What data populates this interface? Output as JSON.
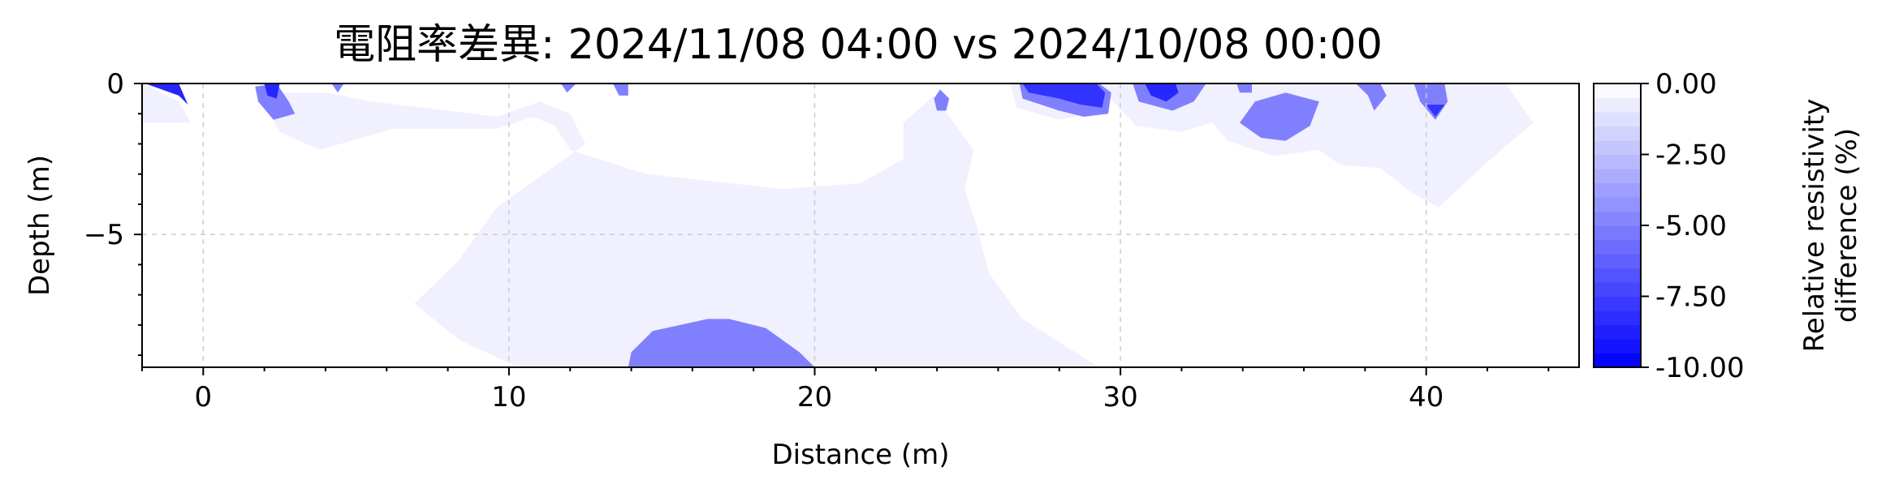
{
  "chart_data": {
    "type": "contour",
    "title": "電阻率差異: 2024/11/08 04:00 vs 2024/10/08 00:00",
    "xlabel": "Distance (m)",
    "ylabel": "Depth (m)",
    "xlim": [
      -2.0,
      45.0
    ],
    "ylim": [
      -9.4,
      0.0
    ],
    "x_ticks": [
      0,
      10,
      20,
      30,
      40
    ],
    "y_ticks": [
      0,
      -5
    ],
    "x_tick_labels": [
      "0",
      "10",
      "20",
      "30",
      "40"
    ],
    "y_tick_labels": [
      "0",
      "−5"
    ],
    "grid": true,
    "colorbar": {
      "label_lines": [
        "Relative resistivity",
        "difference (%)"
      ],
      "range": [
        -10.0,
        0.0
      ],
      "ticks": [
        0.0,
        -2.5,
        -5.0,
        -7.5,
        -10.0
      ],
      "tick_labels": [
        "0.00",
        "-2.50",
        "-5.00",
        "-7.50",
        "-10.00"
      ],
      "levels": 20,
      "color_min": "#0000ff",
      "color_max": "#ffffff"
    },
    "regions": [
      {
        "name": "broad-weak-region",
        "value": -0.6,
        "polygon": [
          [
            1.8,
            -0.3
          ],
          [
            2.5,
            -1.6
          ],
          [
            3.8,
            -2.2
          ],
          [
            6.2,
            -1.5
          ],
          [
            9.6,
            -1.5
          ],
          [
            10.8,
            -1.1
          ],
          [
            11.5,
            -1.4
          ],
          [
            12.0,
            -2.2
          ],
          [
            14.5,
            -3.0
          ],
          [
            19.0,
            -3.5
          ],
          [
            21.5,
            -3.3
          ],
          [
            22.9,
            -2.5
          ],
          [
            22.9,
            -1.3
          ],
          [
            23.9,
            -0.4
          ],
          [
            25.2,
            -2.2
          ],
          [
            24.9,
            -3.5
          ],
          [
            25.3,
            -4.7
          ],
          [
            25.7,
            -6.3
          ],
          [
            26.8,
            -7.8
          ],
          [
            29.3,
            -9.4
          ],
          [
            10.3,
            -9.4
          ],
          [
            8.4,
            -8.5
          ],
          [
            6.9,
            -7.3
          ],
          [
            8.4,
            -5.8
          ],
          [
            9.6,
            -4.1
          ],
          [
            11.0,
            -3.1
          ],
          [
            12.5,
            -2.0
          ],
          [
            12.0,
            -1.0
          ],
          [
            11.0,
            -0.6
          ],
          [
            9.6,
            -1.1
          ],
          [
            8.0,
            -0.9
          ],
          [
            5.5,
            -0.6
          ],
          [
            4.0,
            -0.3
          ]
        ]
      },
      {
        "name": "right-weak-region",
        "value": -0.6,
        "polygon": [
          [
            26.4,
            0.0
          ],
          [
            26.6,
            -0.8
          ],
          [
            28.0,
            -1.2
          ],
          [
            29.0,
            -1.0
          ],
          [
            29.5,
            -0.3
          ],
          [
            30.5,
            -1.4
          ],
          [
            32.0,
            -1.6
          ],
          [
            33.0,
            -1.3
          ],
          [
            33.5,
            -1.9
          ],
          [
            35.0,
            -2.4
          ],
          [
            36.5,
            -2.2
          ],
          [
            37.2,
            -2.7
          ],
          [
            38.5,
            -2.8
          ],
          [
            39.5,
            -3.6
          ],
          [
            40.4,
            -4.1
          ],
          [
            42.0,
            -2.6
          ],
          [
            43.5,
            -1.3
          ],
          [
            42.6,
            0.0
          ]
        ]
      },
      {
        "name": "left-edge-weak-region",
        "value": -0.6,
        "polygon": [
          [
            -2.0,
            0.0
          ],
          [
            -0.8,
            -0.6
          ],
          [
            -0.4,
            -1.3
          ],
          [
            -2.0,
            -1.3
          ]
        ]
      },
      {
        "name": "deep-anomaly",
        "value": -5.0,
        "polygon": [
          [
            13.9,
            -9.4
          ],
          [
            14.0,
            -8.9
          ],
          [
            14.7,
            -8.2
          ],
          [
            16.5,
            -7.8
          ],
          [
            17.2,
            -7.8
          ],
          [
            18.4,
            -8.1
          ],
          [
            19.5,
            -8.9
          ],
          [
            20.0,
            -9.4
          ]
        ]
      },
      {
        "name": "shallow-anomaly-35m",
        "value": -5.0,
        "polygon": [
          [
            34.4,
            -0.6
          ],
          [
            35.4,
            -0.3
          ],
          [
            36.5,
            -0.6
          ],
          [
            36.2,
            -1.4
          ],
          [
            35.4,
            -1.9
          ],
          [
            34.6,
            -1.8
          ],
          [
            33.9,
            -1.3
          ]
        ]
      },
      {
        "name": "shallow-anomaly-31m",
        "value": -5.0,
        "polygon": [
          [
            30.4,
            0.0
          ],
          [
            30.6,
            -0.6
          ],
          [
            31.7,
            -0.9
          ],
          [
            32.4,
            -0.6
          ],
          [
            32.8,
            0.0
          ]
        ]
      },
      {
        "name": "shallow-anomaly-28m",
        "value": -5.0,
        "polygon": [
          [
            26.7,
            0.0
          ],
          [
            26.8,
            -0.5
          ],
          [
            28.0,
            -0.9
          ],
          [
            28.8,
            -1.1
          ],
          [
            29.6,
            -1.0
          ],
          [
            29.7,
            -0.3
          ],
          [
            29.3,
            0.0
          ]
        ]
      },
      {
        "name": "shallow-anomaly-40m",
        "value": -5.0,
        "polygon": [
          [
            39.6,
            0.0
          ],
          [
            39.8,
            -0.6
          ],
          [
            40.3,
            -1.2
          ],
          [
            40.7,
            -0.6
          ],
          [
            40.6,
            0.0
          ]
        ]
      },
      {
        "name": "shallow-anomaly-2m",
        "value": -5.0,
        "polygon": [
          [
            1.7,
            -0.1
          ],
          [
            1.8,
            -0.6
          ],
          [
            2.3,
            -1.2
          ],
          [
            3.0,
            -1.0
          ],
          [
            2.8,
            -0.6
          ],
          [
            2.4,
            0.0
          ]
        ]
      },
      {
        "name": "shallow-anomaly-38m",
        "value": -5.0,
        "polygon": [
          [
            37.7,
            0.0
          ],
          [
            38.1,
            -0.4
          ],
          [
            38.3,
            -0.9
          ],
          [
            38.7,
            -0.4
          ],
          [
            38.5,
            0.0
          ]
        ]
      },
      {
        "name": "shallow-anomaly-24m",
        "value": -5.0,
        "polygon": [
          [
            23.9,
            -0.5
          ],
          [
            24.1,
            -0.2
          ],
          [
            24.4,
            -0.5
          ],
          [
            24.3,
            -0.9
          ],
          [
            24.0,
            -0.9
          ]
        ]
      },
      {
        "name": "shallow-anomaly-33m",
        "value": -5.0,
        "polygon": [
          [
            33.8,
            0.0
          ],
          [
            33.9,
            -0.3
          ],
          [
            34.3,
            -0.3
          ],
          [
            34.3,
            0.0
          ]
        ]
      },
      {
        "name": "shallow-anomaly-14m",
        "value": -5.0,
        "polygon": [
          [
            13.4,
            0.0
          ],
          [
            13.6,
            -0.4
          ],
          [
            13.9,
            -0.4
          ],
          [
            13.9,
            0.0
          ]
        ]
      },
      {
        "name": "shallow-anomaly-12m",
        "value": -5.0,
        "polygon": [
          [
            11.7,
            0.0
          ],
          [
            11.9,
            -0.3
          ],
          [
            12.2,
            0.0
          ]
        ]
      },
      {
        "name": "shallow-anomaly-4m",
        "value": -5.0,
        "polygon": [
          [
            4.2,
            0.0
          ],
          [
            4.4,
            -0.3
          ],
          [
            4.6,
            0.0
          ]
        ]
      },
      {
        "name": "core-anomaly-28m",
        "value": -8.0,
        "polygon": [
          [
            26.8,
            0.0
          ],
          [
            27.0,
            -0.3
          ],
          [
            28.0,
            -0.5
          ],
          [
            28.7,
            -0.7
          ],
          [
            29.4,
            -0.8
          ],
          [
            29.5,
            -0.3
          ],
          [
            29.2,
            0.0
          ]
        ]
      },
      {
        "name": "core-anomaly-31m",
        "value": -8.5,
        "polygon": [
          [
            30.8,
            0.0
          ],
          [
            31.0,
            -0.4
          ],
          [
            31.5,
            -0.6
          ],
          [
            31.9,
            -0.3
          ],
          [
            31.8,
            0.0
          ]
        ]
      },
      {
        "name": "core-anomaly-left-edge",
        "value": -8.5,
        "polygon": [
          [
            -1.9,
            0.0
          ],
          [
            -0.8,
            -0.4
          ],
          [
            -0.5,
            -0.7
          ],
          [
            -0.8,
            0.0
          ]
        ]
      },
      {
        "name": "core-anomaly-2m",
        "value": -8.5,
        "polygon": [
          [
            2.0,
            0.0
          ],
          [
            2.1,
            -0.4
          ],
          [
            2.4,
            -0.5
          ],
          [
            2.5,
            0.0
          ]
        ]
      },
      {
        "name": "core-anomaly-40m",
        "value": -8.0,
        "polygon": [
          [
            40.0,
            -0.7
          ],
          [
            40.3,
            -1.1
          ],
          [
            40.6,
            -0.7
          ]
        ]
      }
    ]
  }
}
